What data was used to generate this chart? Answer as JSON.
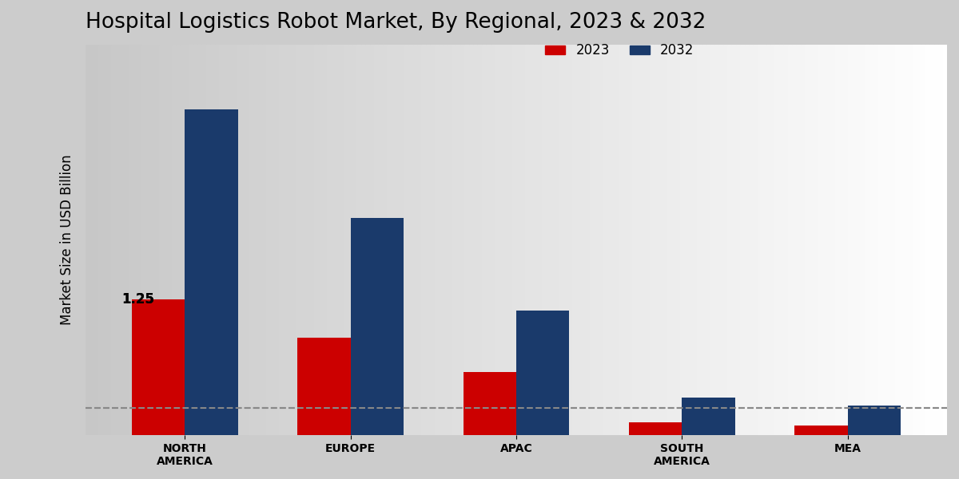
{
  "title": "Hospital Logistics Robot Market, By Regional, 2023 & 2032",
  "ylabel": "Market Size in USD Billion",
  "categories": [
    "NORTH\nAMERICA",
    "EUROPE",
    "APAC",
    "SOUTH\nAMERICA",
    "MEA"
  ],
  "values_2023": [
    1.25,
    0.9,
    0.58,
    0.12,
    0.09
  ],
  "values_2032": [
    3.0,
    2.0,
    1.15,
    0.35,
    0.27
  ],
  "color_2023": "#cc0000",
  "color_2032": "#1a3a6b",
  "bar_width": 0.32,
  "annotation_label": "1.25",
  "dashed_line_y": 0.25,
  "ylim": [
    0,
    3.6
  ],
  "legend_labels": [
    "2023",
    "2032"
  ],
  "title_fontsize": 19,
  "axis_label_fontsize": 12,
  "tick_fontsize": 10,
  "legend_fontsize": 12
}
